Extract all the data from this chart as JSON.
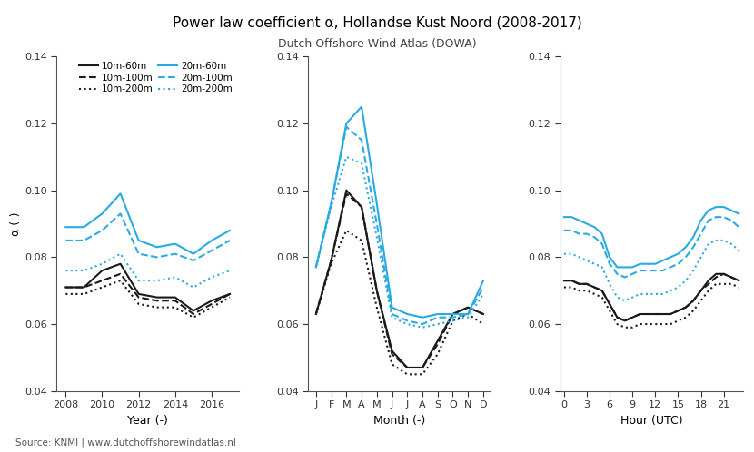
{
  "title": "Power law coefficient α, Hollandse Kust Noord (2008-2017)",
  "subtitle": "Dutch Offshore Wind Atlas (DOWA)",
  "ylabel": "α (-)",
  "source": "Source: KNMI | www.dutchoffshorewindatlas.nl",
  "year_x": [
    2008,
    2009,
    2010,
    2011,
    2012,
    2013,
    2014,
    2015,
    2016,
    2017
  ],
  "year_10m60m": [
    0.071,
    0.071,
    0.076,
    0.078,
    0.069,
    0.068,
    0.068,
    0.064,
    0.067,
    0.069
  ],
  "year_10m100m": [
    0.071,
    0.071,
    0.073,
    0.075,
    0.068,
    0.067,
    0.067,
    0.063,
    0.066,
    0.069
  ],
  "year_10m200m": [
    0.069,
    0.069,
    0.071,
    0.073,
    0.066,
    0.065,
    0.065,
    0.062,
    0.065,
    0.068
  ],
  "year_20m60m": [
    0.089,
    0.089,
    0.093,
    0.099,
    0.085,
    0.083,
    0.084,
    0.081,
    0.085,
    0.088
  ],
  "year_20m100m": [
    0.085,
    0.085,
    0.088,
    0.093,
    0.081,
    0.08,
    0.081,
    0.079,
    0.082,
    0.085
  ],
  "year_20m200m": [
    0.076,
    0.076,
    0.078,
    0.081,
    0.073,
    0.073,
    0.074,
    0.071,
    0.074,
    0.076
  ],
  "month_x": [
    1,
    2,
    3,
    4,
    5,
    6,
    7,
    8,
    9,
    10,
    11,
    12
  ],
  "month_labels": [
    "J",
    "F",
    "M",
    "A",
    "M",
    "J",
    "J",
    "A",
    "S",
    "O",
    "N",
    "D"
  ],
  "month_10m60m": [
    0.063,
    0.079,
    0.1,
    0.095,
    0.07,
    0.052,
    0.047,
    0.047,
    0.055,
    0.063,
    0.065,
    0.063
  ],
  "month_10m100m": [
    0.063,
    0.079,
    0.099,
    0.095,
    0.07,
    0.051,
    0.047,
    0.047,
    0.054,
    0.063,
    0.065,
    0.063
  ],
  "month_10m200m": [
    0.063,
    0.078,
    0.088,
    0.085,
    0.065,
    0.048,
    0.045,
    0.045,
    0.051,
    0.061,
    0.063,
    0.06
  ],
  "month_20m60m": [
    0.077,
    0.096,
    0.12,
    0.125,
    0.096,
    0.065,
    0.063,
    0.062,
    0.063,
    0.063,
    0.063,
    0.073
  ],
  "month_20m100m": [
    0.077,
    0.096,
    0.119,
    0.115,
    0.09,
    0.063,
    0.061,
    0.06,
    0.062,
    0.062,
    0.063,
    0.071
  ],
  "month_20m200m": [
    0.077,
    0.095,
    0.11,
    0.108,
    0.086,
    0.062,
    0.06,
    0.059,
    0.06,
    0.061,
    0.062,
    0.069
  ],
  "hour_x": [
    0,
    1,
    2,
    3,
    4,
    5,
    6,
    7,
    8,
    9,
    10,
    11,
    12,
    13,
    14,
    15,
    16,
    17,
    18,
    19,
    20,
    21,
    22,
    23
  ],
  "hour_10m60m": [
    0.073,
    0.073,
    0.072,
    0.072,
    0.071,
    0.07,
    0.066,
    0.062,
    0.061,
    0.062,
    0.063,
    0.063,
    0.063,
    0.063,
    0.063,
    0.064,
    0.065,
    0.067,
    0.07,
    0.073,
    0.075,
    0.075,
    0.074,
    0.073
  ],
  "hour_10m100m": [
    0.073,
    0.073,
    0.072,
    0.072,
    0.071,
    0.07,
    0.066,
    0.062,
    0.061,
    0.062,
    0.063,
    0.063,
    0.063,
    0.063,
    0.063,
    0.064,
    0.065,
    0.067,
    0.07,
    0.072,
    0.074,
    0.075,
    0.074,
    0.073
  ],
  "hour_10m200m": [
    0.071,
    0.071,
    0.07,
    0.07,
    0.069,
    0.068,
    0.064,
    0.06,
    0.059,
    0.059,
    0.06,
    0.06,
    0.06,
    0.06,
    0.06,
    0.061,
    0.062,
    0.064,
    0.067,
    0.07,
    0.072,
    0.072,
    0.072,
    0.071
  ],
  "hour_20m60m": [
    0.092,
    0.092,
    0.091,
    0.09,
    0.089,
    0.087,
    0.08,
    0.077,
    0.077,
    0.077,
    0.078,
    0.078,
    0.078,
    0.079,
    0.08,
    0.081,
    0.083,
    0.086,
    0.091,
    0.094,
    0.095,
    0.095,
    0.094,
    0.093
  ],
  "hour_20m100m": [
    0.088,
    0.088,
    0.087,
    0.087,
    0.086,
    0.084,
    0.078,
    0.075,
    0.074,
    0.075,
    0.076,
    0.076,
    0.076,
    0.076,
    0.077,
    0.078,
    0.08,
    0.083,
    0.087,
    0.091,
    0.092,
    0.092,
    0.091,
    0.089
  ],
  "hour_20m200m": [
    0.081,
    0.081,
    0.08,
    0.079,
    0.078,
    0.077,
    0.072,
    0.068,
    0.067,
    0.068,
    0.069,
    0.069,
    0.069,
    0.069,
    0.07,
    0.071,
    0.073,
    0.076,
    0.08,
    0.084,
    0.085,
    0.085,
    0.084,
    0.082
  ],
  "color_black": "#1a1a1a",
  "color_cyan": "#29abe2",
  "ylim": [
    0.04,
    0.14
  ],
  "yticks": [
    0.04,
    0.06,
    0.08,
    0.1,
    0.12,
    0.14
  ]
}
